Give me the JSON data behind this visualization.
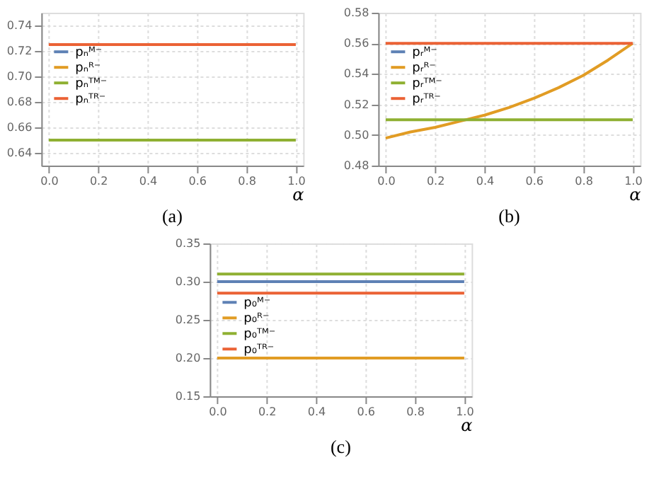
{
  "chart_data": [
    {
      "type": "line",
      "title": "(a)",
      "xlabel": "α",
      "x": [
        0,
        1
      ],
      "xlim": [
        -0.03,
        1.03
      ],
      "ylim": [
        0.63,
        0.75
      ],
      "xticks": [
        {
          "value": 0,
          "label": "0.0"
        },
        {
          "value": 0.2,
          "label": "0.2"
        },
        {
          "value": 0.4,
          "label": "0.4"
        },
        {
          "value": 0.6,
          "label": "0.6"
        },
        {
          "value": 0.8,
          "label": "0.8"
        },
        {
          "value": 1,
          "label": "1.0"
        }
      ],
      "yticks": [
        0.64,
        0.66,
        0.68,
        {
          "value": 0.7,
          "label": "0.70"
        },
        0.72,
        0.74
      ],
      "grid": true,
      "legend": "top left",
      "series": [
        {
          "name": "pₙᴹ⁻",
          "color": "#5e81b5",
          "values": [
            null,
            null
          ]
        },
        {
          "name": "pₙᴿ⁻",
          "color": "#e19c24",
          "values": [
            null,
            null
          ]
        },
        {
          "name": "pₙᵀᴹ⁻",
          "color": "#8fb032",
          "values": [
            0.65,
            0.65
          ]
        },
        {
          "name": "pₙᵀᴿ⁻",
          "color": "#eb6235",
          "values": [
            0.725,
            0.725
          ]
        }
      ]
    },
    {
      "type": "line",
      "title": "(b)",
      "xlabel": "α",
      "x": [
        0,
        0.1,
        0.2,
        0.3,
        0.4,
        0.5,
        0.6,
        0.7,
        0.8,
        0.9,
        1
      ],
      "xlim": [
        -0.03,
        1.03
      ],
      "ylim": [
        0.48,
        0.58
      ],
      "xticks": [
        {
          "value": 0,
          "label": "0.0"
        },
        {
          "value": 0.2,
          "label": "0.2"
        },
        {
          "value": 0.4,
          "label": "0.4"
        },
        {
          "value": 0.6,
          "label": "0.6"
        },
        {
          "value": 0.8,
          "label": "0.8"
        },
        {
          "value": 1,
          "label": "1.0"
        }
      ],
      "yticks": [
        {
          "value": 0.48,
          "label": "0.48"
        },
        {
          "value": 0.5,
          "label": "0.50"
        },
        {
          "value": 0.52,
          "label": "0.52"
        },
        {
          "value": 0.54,
          "label": "0.54"
        },
        {
          "value": 0.56,
          "label": "0.56"
        },
        {
          "value": 0.58,
          "label": "0.58"
        }
      ],
      "grid": true,
      "legend": "top left",
      "series": [
        {
          "name": "pᵣᴹ⁻",
          "color": "#5e81b5",
          "values": [
            null,
            null,
            null,
            null,
            null,
            null,
            null,
            null,
            null,
            null,
            null
          ]
        },
        {
          "name": "pᵣᴿ⁻",
          "color": "#e19c24",
          "values": [
            0.498,
            0.502,
            0.505,
            0.509,
            0.513,
            0.518,
            0.524,
            0.531,
            0.539,
            0.549,
            0.56
          ]
        },
        {
          "name": "pᵣᵀᴹ⁻",
          "color": "#8fb032",
          "values": [
            0.51,
            0.51,
            0.51,
            0.51,
            0.51,
            0.51,
            0.51,
            0.51,
            0.51,
            0.51,
            0.51
          ]
        },
        {
          "name": "pᵣᵀᴿ⁻",
          "color": "#eb6235",
          "values": [
            0.56,
            0.56,
            0.56,
            0.56,
            0.56,
            0.56,
            0.56,
            0.56,
            0.56,
            0.56,
            0.56
          ]
        }
      ]
    },
    {
      "type": "line",
      "title": "(c)",
      "xlabel": "α",
      "x": [
        0,
        1
      ],
      "xlim": [
        -0.03,
        1.03
      ],
      "ylim": [
        0.15,
        0.35
      ],
      "xticks": [
        {
          "value": 0,
          "label": "0.0"
        },
        {
          "value": 0.2,
          "label": "0.2"
        },
        {
          "value": 0.4,
          "label": "0.4"
        },
        {
          "value": 0.6,
          "label": "0.6"
        },
        {
          "value": 0.8,
          "label": "0.8"
        },
        {
          "value": 1,
          "label": "1.0"
        }
      ],
      "yticks": [
        0.15,
        {
          "value": 0.2,
          "label": "0.20"
        },
        0.25,
        {
          "value": 0.3,
          "label": "0.30"
        },
        0.35
      ],
      "grid": true,
      "legend": "left",
      "series": [
        {
          "name": "p₀ᴹ⁻",
          "color": "#5e81b5",
          "values": [
            0.3,
            0.3
          ]
        },
        {
          "name": "p₀ᴿ⁻",
          "color": "#e19c24",
          "values": [
            0.2,
            0.2
          ]
        },
        {
          "name": "p₀ᵀᴹ⁻",
          "color": "#8fb032",
          "values": [
            0.31,
            0.31
          ]
        },
        {
          "name": "p₀ᵀᴿ⁻",
          "color": "#eb6235",
          "values": [
            0.285,
            0.285
          ]
        }
      ]
    }
  ]
}
